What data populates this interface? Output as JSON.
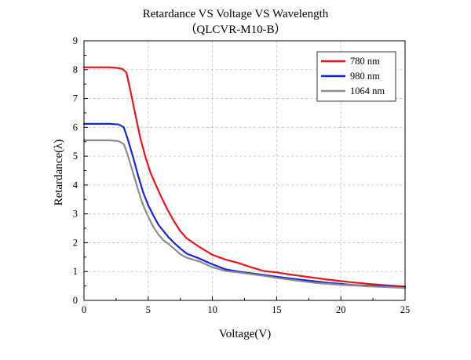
{
  "chart_data": {
    "type": "line",
    "title": "Retardance VS Voltage VS Wavelength",
    "subtitle": "（QLCVR-M10-B）",
    "xlabel": "Voltage(V)",
    "ylabel": "Retardance(λ)",
    "xlim": [
      0,
      25
    ],
    "ylim": [
      0,
      9
    ],
    "xticks": [
      0,
      5,
      10,
      15,
      20,
      25
    ],
    "yticks": [
      0,
      1,
      2,
      3,
      4,
      5,
      6,
      7,
      8,
      9
    ],
    "grid": true,
    "legend_position": "top-right",
    "series": [
      {
        "name": "780 nm",
        "color": "#e8141b",
        "points": [
          [
            0,
            8.08
          ],
          [
            1,
            8.08
          ],
          [
            2,
            8.08
          ],
          [
            2.6,
            8.06
          ],
          [
            3,
            8.02
          ],
          [
            3.3,
            7.9
          ],
          [
            3.6,
            7.3
          ],
          [
            4,
            6.45
          ],
          [
            4.4,
            5.6
          ],
          [
            4.8,
            4.95
          ],
          [
            5.2,
            4.4
          ],
          [
            5.6,
            4.0
          ],
          [
            6,
            3.6
          ],
          [
            6.5,
            3.15
          ],
          [
            7,
            2.75
          ],
          [
            7.5,
            2.4
          ],
          [
            8,
            2.15
          ],
          [
            9,
            1.85
          ],
          [
            10,
            1.58
          ],
          [
            11,
            1.42
          ],
          [
            12,
            1.3
          ],
          [
            13,
            1.15
          ],
          [
            14,
            1.02
          ],
          [
            15,
            0.97
          ],
          [
            16,
            0.9
          ],
          [
            17,
            0.84
          ],
          [
            18,
            0.78
          ],
          [
            19,
            0.72
          ],
          [
            20,
            0.67
          ],
          [
            21,
            0.62
          ],
          [
            22,
            0.58
          ],
          [
            23,
            0.54
          ],
          [
            24,
            0.51
          ],
          [
            25,
            0.48
          ]
        ]
      },
      {
        "name": "980 nm",
        "color": "#1626d6",
        "points": [
          [
            0,
            6.12
          ],
          [
            1,
            6.12
          ],
          [
            2,
            6.12
          ],
          [
            2.7,
            6.1
          ],
          [
            3.1,
            6.0
          ],
          [
            3.4,
            5.6
          ],
          [
            3.8,
            5.0
          ],
          [
            4.2,
            4.35
          ],
          [
            4.6,
            3.75
          ],
          [
            5,
            3.3
          ],
          [
            5.4,
            2.95
          ],
          [
            5.8,
            2.62
          ],
          [
            6.2,
            2.4
          ],
          [
            6.6,
            2.18
          ],
          [
            7,
            2.0
          ],
          [
            7.5,
            1.8
          ],
          [
            8,
            1.62
          ],
          [
            9,
            1.45
          ],
          [
            10,
            1.25
          ],
          [
            11,
            1.08
          ],
          [
            12,
            1.0
          ],
          [
            13,
            0.94
          ],
          [
            14,
            0.88
          ],
          [
            15,
            0.82
          ],
          [
            16,
            0.76
          ],
          [
            17,
            0.71
          ],
          [
            18,
            0.66
          ],
          [
            19,
            0.61
          ],
          [
            20,
            0.57
          ],
          [
            21,
            0.53
          ],
          [
            22,
            0.51
          ],
          [
            23,
            0.49
          ],
          [
            24,
            0.47
          ],
          [
            25,
            0.45
          ]
        ]
      },
      {
        "name": "1064 nm",
        "color": "#8c8c8c",
        "points": [
          [
            0,
            5.55
          ],
          [
            1,
            5.55
          ],
          [
            2,
            5.55
          ],
          [
            2.7,
            5.52
          ],
          [
            3.1,
            5.42
          ],
          [
            3.4,
            5.05
          ],
          [
            3.8,
            4.45
          ],
          [
            4.2,
            3.85
          ],
          [
            4.6,
            3.3
          ],
          [
            5,
            2.9
          ],
          [
            5.4,
            2.55
          ],
          [
            5.8,
            2.28
          ],
          [
            6.2,
            2.08
          ],
          [
            6.6,
            1.95
          ],
          [
            7,
            1.8
          ],
          [
            7.5,
            1.6
          ],
          [
            8,
            1.48
          ],
          [
            9,
            1.35
          ],
          [
            10,
            1.15
          ],
          [
            11,
            1.02
          ],
          [
            12,
            0.97
          ],
          [
            13,
            0.91
          ],
          [
            14,
            0.85
          ],
          [
            15,
            0.78
          ],
          [
            16,
            0.72
          ],
          [
            17,
            0.66
          ],
          [
            18,
            0.61
          ],
          [
            19,
            0.57
          ],
          [
            20,
            0.54
          ],
          [
            21,
            0.52
          ],
          [
            22,
            0.49
          ],
          [
            23,
            0.47
          ],
          [
            24,
            0.45
          ],
          [
            25,
            0.43
          ]
        ]
      }
    ]
  }
}
